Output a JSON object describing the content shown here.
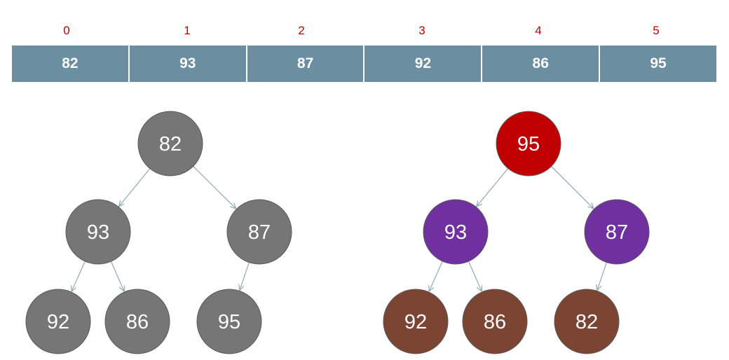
{
  "array": {
    "indices": [
      "0",
      "1",
      "2",
      "3",
      "4",
      "5"
    ],
    "values": [
      "82",
      "93",
      "87",
      "92",
      "86",
      "95"
    ]
  },
  "trees": [
    {
      "nodes": [
        {
          "id": "a0",
          "label": "82",
          "color": "#767676"
        },
        {
          "id": "a1",
          "label": "93",
          "color": "#767676"
        },
        {
          "id": "a2",
          "label": "87",
          "color": "#767676"
        },
        {
          "id": "a3",
          "label": "92",
          "color": "#767676"
        },
        {
          "id": "a4",
          "label": "86",
          "color": "#767676"
        },
        {
          "id": "a5",
          "label": "95",
          "color": "#767676"
        }
      ],
      "edges": [
        [
          "a0",
          "a1"
        ],
        [
          "a0",
          "a2"
        ],
        [
          "a1",
          "a3"
        ],
        [
          "a1",
          "a4"
        ],
        [
          "a2",
          "a5"
        ]
      ]
    },
    {
      "nodes": [
        {
          "id": "b0",
          "label": "95",
          "color": "#c00000"
        },
        {
          "id": "b1",
          "label": "93",
          "color": "#7030a0"
        },
        {
          "id": "b2",
          "label": "87",
          "color": "#7030a0"
        },
        {
          "id": "b3",
          "label": "92",
          "color": "#7b4433"
        },
        {
          "id": "b4",
          "label": "86",
          "color": "#7b4433"
        },
        {
          "id": "b5",
          "label": "82",
          "color": "#7b4433"
        }
      ],
      "edges": [
        [
          "b0",
          "b1"
        ],
        [
          "b0",
          "b2"
        ],
        [
          "b1",
          "b3"
        ],
        [
          "b1",
          "b4"
        ],
        [
          "b2",
          "b5"
        ]
      ]
    }
  ],
  "colors": {
    "index_text": "#c00000",
    "cell_bg": "#6b8ea0",
    "edge": "#8fa9b8",
    "stroke": "#5a5a5a"
  }
}
